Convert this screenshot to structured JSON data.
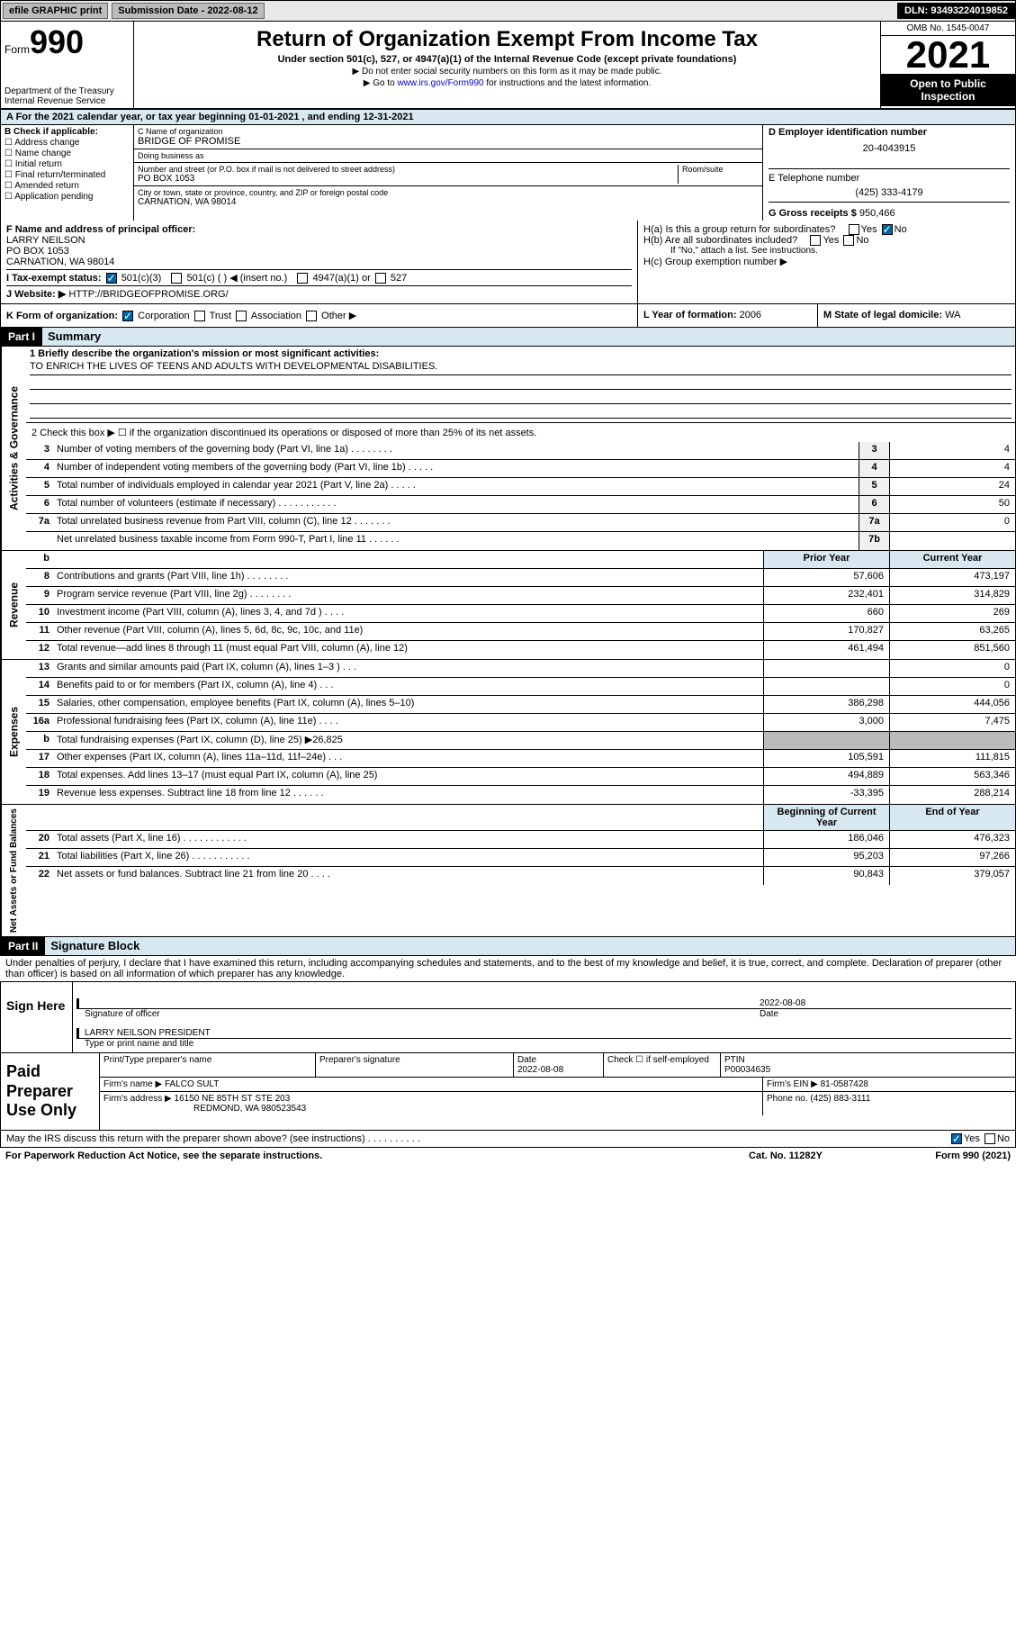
{
  "topbar": {
    "efile": "efile GRAPHIC print",
    "submission_label": "Submission Date - 2022-08-12",
    "dln": "DLN: 93493224019852"
  },
  "header": {
    "form_prefix": "Form",
    "form_number": "990",
    "dept": "Department of the Treasury Internal Revenue Service",
    "title": "Return of Organization Exempt From Income Tax",
    "sub": "Under section 501(c), 527, or 4947(a)(1) of the Internal Revenue Code (except private foundations)",
    "note1": "▶ Do not enter social security numbers on this form as it may be made public.",
    "note2_pre": "▶ Go to ",
    "note2_link": "www.irs.gov/Form990",
    "note2_post": " for instructions and the latest information.",
    "omb": "OMB No. 1545-0047",
    "year": "2021",
    "inspect": "Open to Public Inspection"
  },
  "rowA": "A For the 2021 calendar year, or tax year beginning 01-01-2021   , and ending 12-31-2021",
  "sectionB": {
    "label": "B Check if applicable:",
    "opts": [
      "Address change",
      "Name change",
      "Initial return",
      "Final return/terminated",
      "Amended return",
      "Application pending"
    ]
  },
  "sectionC": {
    "name_lbl": "C Name of organization",
    "name": "BRIDGE OF PROMISE",
    "dba_lbl": "Doing business as",
    "street_lbl": "Number and street (or P.O. box if mail is not delivered to street address)",
    "room_lbl": "Room/suite",
    "street": "PO BOX 1053",
    "city_lbl": "City or town, state or province, country, and ZIP or foreign postal code",
    "city": "CARNATION, WA  98014"
  },
  "sectionD": {
    "lbl": "D Employer identification number",
    "val": "20-4043915"
  },
  "sectionE": {
    "lbl": "E Telephone number",
    "val": "(425) 333-4179"
  },
  "sectionG": {
    "lbl": "G Gross receipts $",
    "val": "950,466"
  },
  "sectionF": {
    "lbl": "F Name and address of principal officer:",
    "name": "LARRY NEILSON",
    "addr1": "PO BOX 1053",
    "addr2": "CARNATION, WA  98014"
  },
  "sectionH": {
    "ha": "H(a)  Is this a group return for subordinates?",
    "hb": "H(b)  Are all subordinates included?",
    "hb_note": "If \"No,\" attach a list. See instructions.",
    "hc": "H(c)  Group exemption number ▶",
    "yes": "Yes",
    "no": "No"
  },
  "rowI": {
    "lbl": "I   Tax-exempt status:",
    "o1": "501(c)(3)",
    "o2": "501(c) (  ) ◀ (insert no.)",
    "o3": "4947(a)(1) or",
    "o4": "527"
  },
  "rowJ": {
    "lbl": "J   Website: ▶",
    "val": "HTTP://BRIDGEOFPROMISE.ORG/"
  },
  "rowK": {
    "lbl": "K Form of organization:",
    "o1": "Corporation",
    "o2": "Trust",
    "o3": "Association",
    "o4": "Other ▶"
  },
  "rowL": {
    "lbl": "L Year of formation:",
    "val": "2006"
  },
  "rowM": {
    "lbl": "M State of legal domicile:",
    "val": "WA"
  },
  "part1": {
    "tag": "Part I",
    "title": "Summary"
  },
  "mission": {
    "lbl": "1   Briefly describe the organization's mission or most significant activities:",
    "text": "TO ENRICH THE LIVES OF TEENS AND ADULTS WITH DEVELOPMENTAL DISABILITIES."
  },
  "line2": "2  Check this box ▶ ☐  if the organization discontinued its operations or disposed of more than 25% of its net assets.",
  "gov_lines": [
    {
      "n": "3",
      "t": "Number of voting members of the governing body (Part VI, line 1a)  .   .   .   .   .   .   .   .",
      "b": "3",
      "v": "4"
    },
    {
      "n": "4",
      "t": "Number of independent voting members of the governing body (Part VI, line 1b)  .   .   .   .   .",
      "b": "4",
      "v": "4"
    },
    {
      "n": "5",
      "t": "Total number of individuals employed in calendar year 2021 (Part V, line 2a)  .   .   .   .   .",
      "b": "5",
      "v": "24"
    },
    {
      "n": "6",
      "t": "Total number of volunteers (estimate if necessary)  .   .   .   .   .   .   .   .   .   .   .",
      "b": "6",
      "v": "50"
    },
    {
      "n": "7a",
      "t": "Total unrelated business revenue from Part VIII, column (C), line 12  .   .   .   .   .   .   .",
      "b": "7a",
      "v": "0"
    },
    {
      "n": "",
      "t": "Net unrelated business taxable income from Form 990-T, Part I, line 11  .   .   .   .   .   .",
      "b": "7b",
      "v": ""
    }
  ],
  "col_hdrs": {
    "b": "b",
    "prior": "Prior Year",
    "current": "Current Year"
  },
  "rev_lines": [
    {
      "n": "8",
      "t": "Contributions and grants (Part VIII, line 1h)  .   .   .   .   .   .   .   .",
      "p": "57,606",
      "c": "473,197"
    },
    {
      "n": "9",
      "t": "Program service revenue (Part VIII, line 2g)  .   .   .   .   .   .   .   .",
      "p": "232,401",
      "c": "314,829"
    },
    {
      "n": "10",
      "t": "Investment income (Part VIII, column (A), lines 3, 4, and 7d )  .   .   .   .",
      "p": "660",
      "c": "269"
    },
    {
      "n": "11",
      "t": "Other revenue (Part VIII, column (A), lines 5, 6d, 8c, 9c, 10c, and 11e)",
      "p": "170,827",
      "c": "63,265"
    },
    {
      "n": "12",
      "t": "Total revenue—add lines 8 through 11 (must equal Part VIII, column (A), line 12)",
      "p": "461,494",
      "c": "851,560"
    }
  ],
  "exp_lines": [
    {
      "n": "13",
      "t": "Grants and similar amounts paid (Part IX, column (A), lines 1–3 )  .   .   .",
      "p": "",
      "c": "0"
    },
    {
      "n": "14",
      "t": "Benefits paid to or for members (Part IX, column (A), line 4)  .   .   .",
      "p": "",
      "c": "0"
    },
    {
      "n": "15",
      "t": "Salaries, other compensation, employee benefits (Part IX, column (A), lines 5–10)",
      "p": "386,298",
      "c": "444,056"
    },
    {
      "n": "16a",
      "t": "Professional fundraising fees (Part IX, column (A), line 11e)  .   .   .   .",
      "p": "3,000",
      "c": "7,475"
    },
    {
      "n": "b",
      "t": "Total fundraising expenses (Part IX, column (D), line 25) ▶26,825",
      "p": "",
      "c": "",
      "shade": true
    },
    {
      "n": "17",
      "t": "Other expenses (Part IX, column (A), lines 11a–11d, 11f–24e)  .   .   .",
      "p": "105,591",
      "c": "111,815"
    },
    {
      "n": "18",
      "t": "Total expenses. Add lines 13–17 (must equal Part IX, column (A), line 25)",
      "p": "494,889",
      "c": "563,346"
    },
    {
      "n": "19",
      "t": "Revenue less expenses. Subtract line 18 from line 12  .   .   .   .   .   .",
      "p": "-33,395",
      "c": "288,214"
    }
  ],
  "net_hdrs": {
    "beg": "Beginning of Current Year",
    "end": "End of Year"
  },
  "net_lines": [
    {
      "n": "20",
      "t": "Total assets (Part X, line 16)  .   .   .   .   .   .   .   .   .   .   .   .",
      "p": "186,046",
      "c": "476,323"
    },
    {
      "n": "21",
      "t": "Total liabilities (Part X, line 26)  .   .   .   .   .   .   .   .   .   .   .",
      "p": "95,203",
      "c": "97,266"
    },
    {
      "n": "22",
      "t": "Net assets or fund balances. Subtract line 21 from line 20  .   .   .   .",
      "p": "90,843",
      "c": "379,057"
    }
  ],
  "part2": {
    "tag": "Part II",
    "title": "Signature Block"
  },
  "sig_intro": "Under penalties of perjury, I declare that I have examined this return, including accompanying schedules and statements, and to the best of my knowledge and belief, it is true, correct, and complete. Declaration of preparer (other than officer) is based on all information of which preparer has any knowledge.",
  "sign": {
    "here": "Sign Here",
    "sig_lbl": "Signature of officer",
    "date_lbl": "Date",
    "date": "2022-08-08",
    "name": "LARRY NEILSON  PRESIDENT",
    "name_lbl": "Type or print name and title"
  },
  "prep": {
    "lbl": "Paid Preparer Use Only",
    "h1": "Print/Type preparer's name",
    "h2": "Preparer's signature",
    "h3": "Date",
    "h3v": "2022-08-08",
    "h4": "Check ☐ if self-employed",
    "h5": "PTIN",
    "h5v": "P00034635",
    "firm_lbl": "Firm's name    ▶",
    "firm": "FALCO SULT",
    "ein_lbl": "Firm's EIN ▶",
    "ein": "81-0587428",
    "addr_lbl": "Firm's address ▶",
    "addr1": "16150 NE 85TH ST STE 203",
    "addr2": "REDMOND, WA  980523543",
    "phone_lbl": "Phone no.",
    "phone": "(425) 883-3111"
  },
  "footer": {
    "discuss": "May the IRS discuss this return with the preparer shown above? (see instructions)  .   .   .   .   .   .   .   .   .   .",
    "yes": "Yes",
    "no": "No",
    "paperwork": "For Paperwork Reduction Act Notice, see the separate instructions.",
    "cat": "Cat. No. 11282Y",
    "form": "Form 990 (2021)"
  },
  "side_labels": {
    "gov": "Activities & Governance",
    "rev": "Revenue",
    "exp": "Expenses",
    "net": "Net Assets or Fund Balances"
  }
}
